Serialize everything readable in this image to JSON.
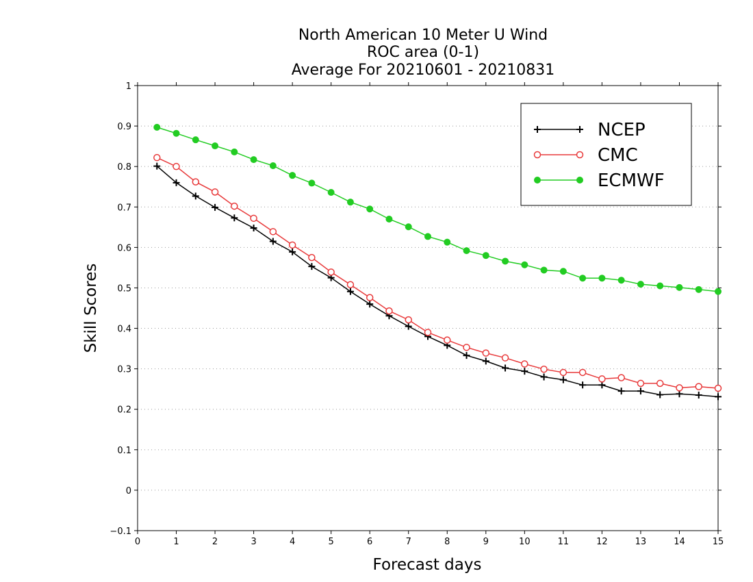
{
  "chart_data": {
    "type": "line",
    "title_lines": [
      "North American 10 Meter U Wind",
      "ROC area (0-1)",
      "Average For 20210601 - 20210831"
    ],
    "xlabel": "Forecast days",
    "ylabel": "Skill Scores",
    "xlim": [
      0,
      15
    ],
    "ylim": [
      -0.1,
      1
    ],
    "x_ticks": [
      0,
      1,
      2,
      3,
      4,
      5,
      6,
      7,
      8,
      9,
      10,
      11,
      12,
      13,
      14,
      15
    ],
    "y_ticks": [
      -0.1,
      0,
      0.1,
      0.2,
      0.3,
      0.4,
      0.5,
      0.6,
      0.7,
      0.8,
      0.9,
      1
    ],
    "y_tick_labels": [
      "−0.1",
      "0",
      "0.1",
      "0.2",
      "0.3",
      "0.4",
      "0.5",
      "0.6",
      "0.7",
      "0.8",
      "0.9",
      "1"
    ],
    "grid": "horizontal dotted",
    "legend_position": "top-right",
    "x": [
      0.5,
      1,
      1.5,
      2,
      2.5,
      3,
      3.5,
      4,
      4.5,
      5,
      5.5,
      6,
      6.5,
      7,
      7.5,
      8,
      8.5,
      9,
      9.5,
      10,
      10.5,
      11,
      11.5,
      12,
      12.5,
      13,
      13.5,
      14,
      14.5,
      15
    ],
    "series": [
      {
        "name": "NCEP",
        "color": "#000000",
        "marker": "plus",
        "values": [
          0.801,
          0.76,
          0.727,
          0.699,
          0.673,
          0.648,
          0.615,
          0.589,
          0.553,
          0.525,
          0.491,
          0.46,
          0.431,
          0.405,
          0.38,
          0.358,
          0.333,
          0.319,
          0.302,
          0.294,
          0.28,
          0.273,
          0.26,
          0.26,
          0.245,
          0.245,
          0.236,
          0.238,
          0.235,
          0.231
        ]
      },
      {
        "name": "CMC",
        "color": "#e8393a",
        "marker": "open-circle",
        "values": [
          0.822,
          0.8,
          0.762,
          0.737,
          0.702,
          0.672,
          0.639,
          0.606,
          0.575,
          0.539,
          0.508,
          0.476,
          0.443,
          0.421,
          0.39,
          0.371,
          0.353,
          0.339,
          0.327,
          0.312,
          0.299,
          0.291,
          0.291,
          0.275,
          0.278,
          0.264,
          0.264,
          0.253,
          0.256,
          0.252
        ]
      },
      {
        "name": "ECMWF",
        "color": "#22cc22",
        "marker": "filled-circle",
        "values": [
          0.897,
          0.882,
          0.866,
          0.851,
          0.836,
          0.817,
          0.802,
          0.778,
          0.759,
          0.736,
          0.712,
          0.695,
          0.67,
          0.651,
          0.627,
          0.613,
          0.592,
          0.58,
          0.566,
          0.557,
          0.544,
          0.541,
          0.524,
          0.524,
          0.519,
          0.509,
          0.505,
          0.501,
          0.496,
          0.491
        ]
      }
    ]
  }
}
